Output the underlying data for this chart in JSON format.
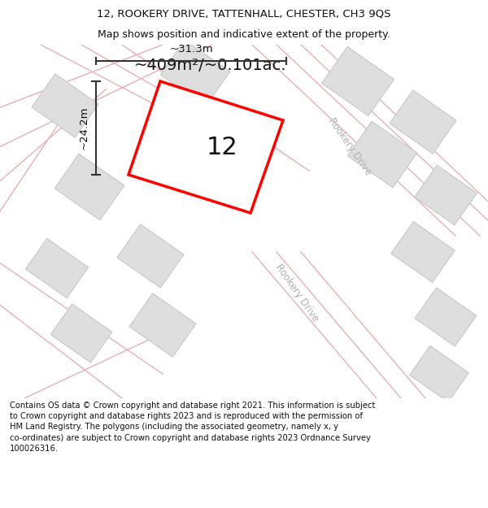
{
  "title_line1": "12, ROOKERY DRIVE, TATTENHALL, CHESTER, CH3 9QS",
  "title_line2": "Map shows position and indicative extent of the property.",
  "footer_text": "Contains OS data © Crown copyright and database right 2021. This information is subject to Crown copyright and database rights 2023 and is reproduced with the permission of HM Land Registry. The polygons (including the associated geometry, namely x, y co-ordinates) are subject to Crown copyright and database rights 2023 Ordnance Survey 100026316.",
  "area_label": "~409m²/~0.101ac.",
  "width_label": "~31.3m",
  "height_label": "~24.2m",
  "number_label": "12",
  "bg_color": "#ffffff",
  "road_color": "#e8b0b5",
  "building_color": "#dedede",
  "building_edge": "#c8c8c8",
  "highlight_color": "#ff0000",
  "dim_line_color": "#333333",
  "street_label_color": "#b0b0b0",
  "title_fontsize": 9.5,
  "footer_fontsize": 7.2,
  "area_fontsize": 14,
  "number_fontsize": 22,
  "dim_fontsize": 9.5
}
